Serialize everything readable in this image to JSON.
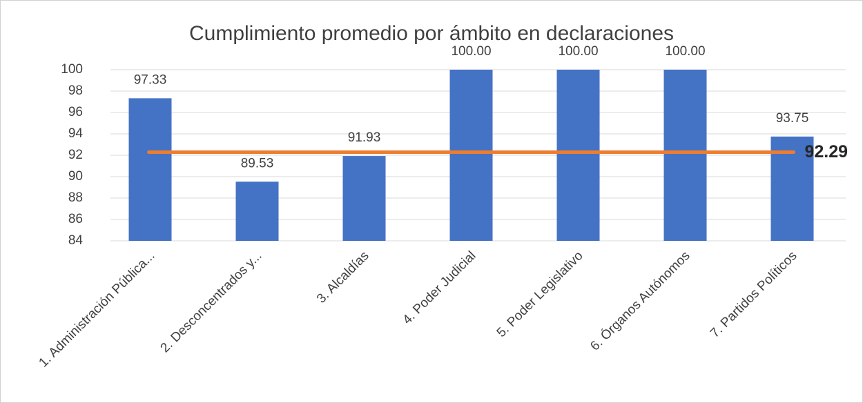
{
  "chart_data": {
    "type": "bar",
    "title": "Cumplimiento promedio por ámbito en declaraciones",
    "categories": [
      "1. Administración Pública...",
      "2. Desconcentrados y...",
      "3. Alcaldías",
      "4. Poder Judicial",
      "5. Poder Legislativo",
      "6. Órganos Autónomos",
      "7. Partidos Políticos"
    ],
    "values": [
      97.33,
      89.53,
      91.93,
      100,
      100,
      100,
      93.75
    ],
    "value_labels": [
      "97.33",
      "89.53",
      "91.93",
      "100.00",
      "100.00",
      "100.00",
      "93.75"
    ],
    "color": "#4472c4",
    "average": {
      "value": 92.29,
      "label": "92.29",
      "color": "#ed7d31"
    },
    "ylim": [
      84,
      100
    ],
    "yticks": [
      84,
      86,
      88,
      90,
      92,
      94,
      96,
      98,
      100
    ],
    "grid": true
  }
}
